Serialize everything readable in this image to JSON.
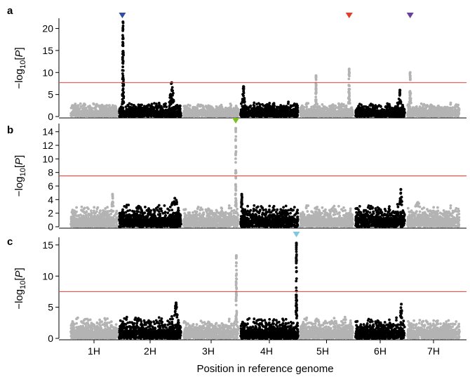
{
  "figure": {
    "x_axis_title": "Position in reference genome",
    "y_axis_title": {
      "prefix": "−log",
      "subscript": "10",
      "open": "[",
      "italic": "P",
      "close": "]"
    },
    "chromosomes": [
      "1H",
      "2H",
      "3H",
      "4H",
      "5H",
      "6H",
      "7H"
    ],
    "colors": {
      "odd_chromosome": "#b3b3b3",
      "even_chromosome": "#000000",
      "threshold_line": "#e8524a",
      "axis": "#000000"
    }
  },
  "chart_data": [
    {
      "type": "scatter",
      "panel": "a",
      "ylim": [
        0,
        22
      ],
      "yticks": [
        0,
        5,
        10,
        15,
        20
      ],
      "threshold": 7.7,
      "baseline_max": [
        3.0,
        3.1,
        2.8,
        3.2,
        3.0,
        3.0,
        3.0
      ],
      "peaks": [
        {
          "chromosome": "2H",
          "position": 0.06,
          "max": 21.5,
          "width": 0.03
        },
        {
          "chromosome": "2H",
          "position": 0.85,
          "max": 7.7,
          "width": 0.08
        },
        {
          "chromosome": "4H",
          "position": 0.05,
          "max": 6.8,
          "width": 0.05
        },
        {
          "chromosome": "5H",
          "position": 0.3,
          "max": 9.3,
          "width": 0.01
        },
        {
          "chromosome": "5H",
          "position": 0.93,
          "max": 10.8,
          "width": 0.03
        },
        {
          "chromosome": "6H",
          "position": 0.9,
          "max": 6.0,
          "width": 0.05
        },
        {
          "chromosome": "7H",
          "position": 0.05,
          "max": 10.0,
          "width": 0.04
        }
      ],
      "markers": [
        {
          "chromosome": "2H",
          "position": 0.05,
          "color": "#2f4f9f"
        },
        {
          "chromosome": "5H",
          "position": 0.93,
          "color": "#e0402a"
        },
        {
          "chromosome": "7H",
          "position": 0.05,
          "color": "#6a3f99"
        }
      ]
    },
    {
      "type": "scatter",
      "panel": "b",
      "ylim": [
        0,
        15
      ],
      "yticks": [
        0,
        2,
        4,
        6,
        8,
        10,
        12,
        14
      ],
      "threshold": 7.5,
      "baseline_max": [
        3.0,
        3.2,
        3.0,
        3.2,
        3.1,
        3.2,
        3.0
      ],
      "peaks": [
        {
          "chromosome": "1H",
          "position": 0.9,
          "max": 4.8,
          "width": 0.04
        },
        {
          "chromosome": "2H",
          "position": 0.9,
          "max": 4.2,
          "width": 0.12
        },
        {
          "chromosome": "3H",
          "position": 0.95,
          "max": 14.5,
          "width": 0.02
        },
        {
          "chromosome": "4H",
          "position": 0.02,
          "max": 4.8,
          "width": 0.03
        },
        {
          "chromosome": "6H",
          "position": 0.92,
          "max": 5.5,
          "width": 0.06
        },
        {
          "chromosome": "7H",
          "position": 0.2,
          "max": 3.6,
          "width": 0.1
        }
      ],
      "markers": [
        {
          "chromosome": "3H",
          "position": 0.95,
          "color": "#7cbf1e"
        }
      ]
    },
    {
      "type": "scatter",
      "panel": "c",
      "ylim": [
        0,
        16
      ],
      "yticks": [
        0,
        5,
        10,
        15
      ],
      "threshold": 7.5,
      "baseline_max": [
        3.3,
        3.4,
        3.0,
        3.2,
        3.3,
        3.2,
        3.0
      ],
      "peaks": [
        {
          "chromosome": "2H",
          "position": 0.92,
          "max": 5.7,
          "width": 0.06
        },
        {
          "chromosome": "3H",
          "position": 0.96,
          "max": 13.3,
          "width": 0.02
        },
        {
          "chromosome": "4H",
          "position": 0.97,
          "max": 15.3,
          "width": 0.02
        },
        {
          "chromosome": "6H",
          "position": 0.93,
          "max": 5.5,
          "width": 0.05
        }
      ],
      "markers": [
        {
          "chromosome": "4H",
          "position": 0.97,
          "color": "#7fc8df"
        }
      ]
    }
  ]
}
